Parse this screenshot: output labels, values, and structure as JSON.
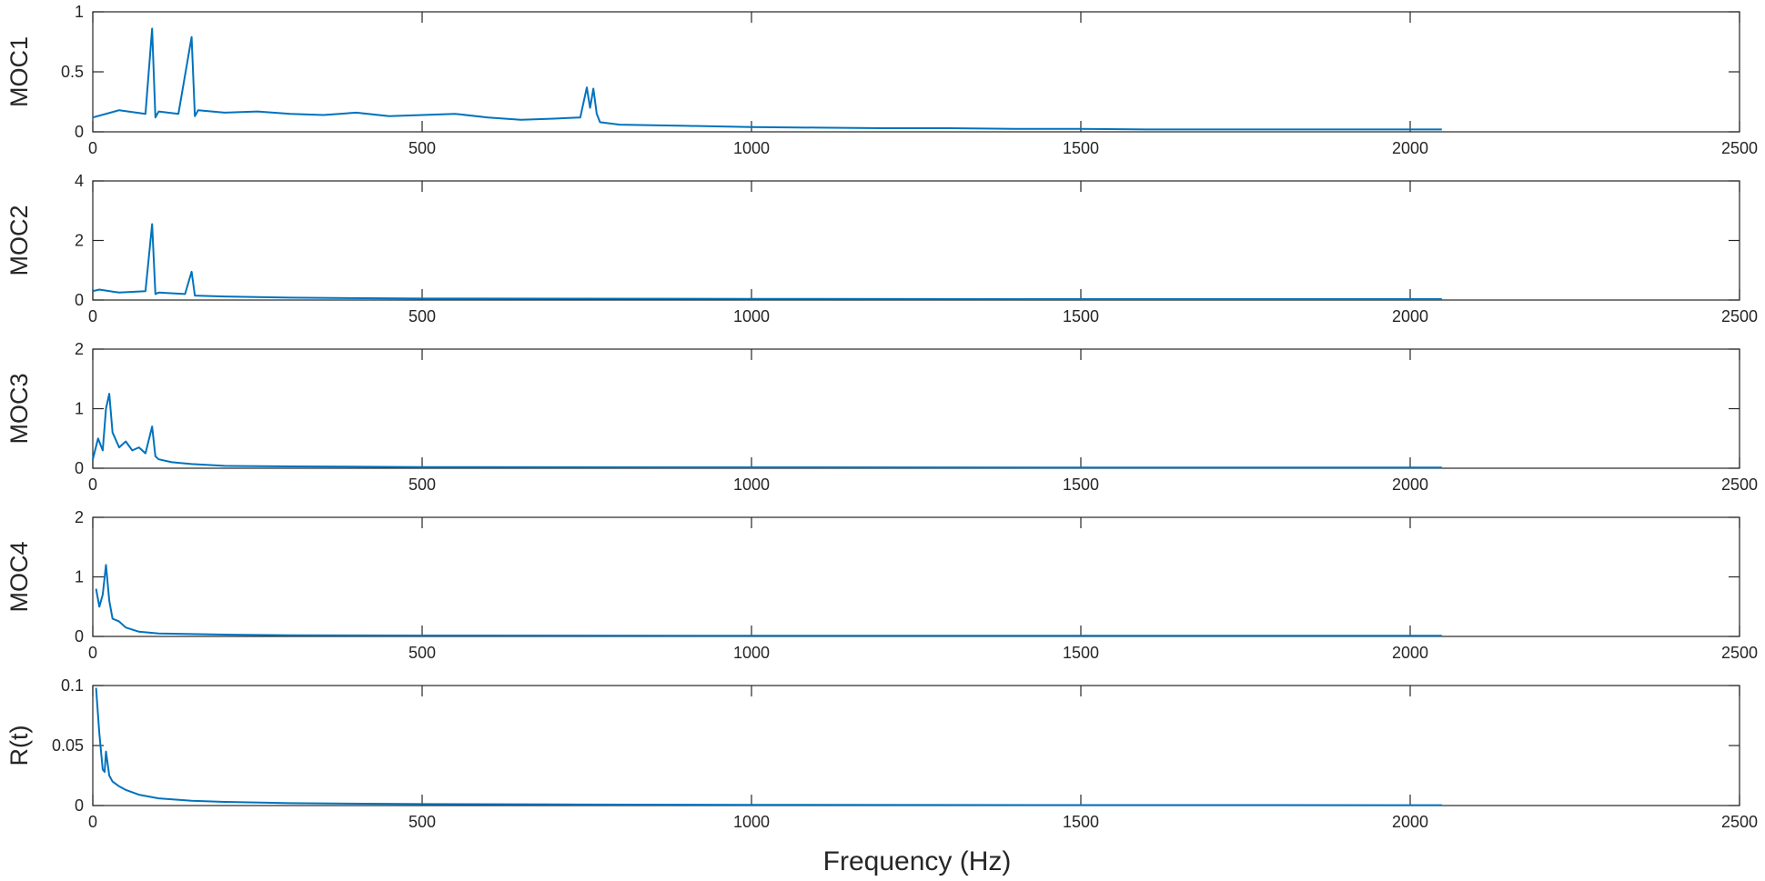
{
  "figure": {
    "xlabel": "Frequency (Hz)",
    "line_color": "#0072BD"
  },
  "chart_data": [
    {
      "type": "line",
      "ylabel": "MOC1",
      "xlim": [
        0,
        2500
      ],
      "ylim": [
        0,
        1
      ],
      "xticks": [
        0,
        500,
        1000,
        1500,
        2000,
        2500
      ],
      "yticks": [
        0,
        0.5,
        1
      ],
      "ytick_labels": [
        "0",
        "0.5",
        "1"
      ],
      "series": [
        {
          "x": [
            0,
            40,
            80,
            90,
            95,
            100,
            130,
            150,
            155,
            160,
            200,
            250,
            300,
            350,
            400,
            450,
            500,
            550,
            600,
            650,
            700,
            740,
            750,
            755,
            760,
            765,
            770,
            800,
            900,
            1000,
            1100,
            1200,
            1300,
            1400,
            1500,
            1600,
            1700,
            1800,
            1900,
            2000,
            2048
          ],
          "y": [
            0.12,
            0.18,
            0.15,
            0.86,
            0.12,
            0.17,
            0.15,
            0.79,
            0.13,
            0.18,
            0.16,
            0.17,
            0.15,
            0.14,
            0.16,
            0.13,
            0.14,
            0.15,
            0.12,
            0.1,
            0.11,
            0.12,
            0.37,
            0.2,
            0.36,
            0.15,
            0.08,
            0.06,
            0.05,
            0.04,
            0.035,
            0.03,
            0.03,
            0.025,
            0.025,
            0.02,
            0.02,
            0.02,
            0.02,
            0.02,
            0.02
          ]
        }
      ]
    },
    {
      "type": "line",
      "ylabel": "MOC2",
      "xlim": [
        0,
        2500
      ],
      "ylim": [
        0,
        4
      ],
      "xticks": [
        0,
        500,
        1000,
        1500,
        2000,
        2500
      ],
      "yticks": [
        0,
        2,
        4
      ],
      "ytick_labels": [
        "0",
        "2",
        "4"
      ],
      "series": [
        {
          "x": [
            0,
            10,
            40,
            80,
            90,
            95,
            100,
            140,
            150,
            155,
            200,
            300,
            500,
            1000,
            1500,
            2000,
            2048
          ],
          "y": [
            0.3,
            0.35,
            0.25,
            0.3,
            2.55,
            0.2,
            0.25,
            0.2,
            0.95,
            0.15,
            0.12,
            0.08,
            0.05,
            0.04,
            0.03,
            0.03,
            0.03
          ]
        }
      ]
    },
    {
      "type": "line",
      "ylabel": "MOC3",
      "xlim": [
        0,
        2500
      ],
      "ylim": [
        0,
        2
      ],
      "xticks": [
        0,
        500,
        1000,
        1500,
        2000,
        2500
      ],
      "yticks": [
        0,
        1,
        2
      ],
      "ytick_labels": [
        "0",
        "1",
        "2"
      ],
      "series": [
        {
          "x": [
            0,
            8,
            15,
            20,
            25,
            30,
            40,
            50,
            60,
            70,
            80,
            90,
            95,
            100,
            120,
            150,
            200,
            300,
            500,
            1000,
            1500,
            2000,
            2048
          ],
          "y": [
            0.15,
            0.5,
            0.3,
            1.0,
            1.25,
            0.6,
            0.35,
            0.45,
            0.3,
            0.35,
            0.25,
            0.7,
            0.2,
            0.15,
            0.1,
            0.07,
            0.04,
            0.03,
            0.02,
            0.015,
            0.01,
            0.01,
            0.01
          ]
        }
      ]
    },
    {
      "type": "line",
      "ylabel": "MOC4",
      "xlim": [
        0,
        2500
      ],
      "ylim": [
        0,
        2
      ],
      "xticks": [
        0,
        500,
        1000,
        1500,
        2000,
        2500
      ],
      "yticks": [
        0,
        1,
        2
      ],
      "ytick_labels": [
        "0",
        "1",
        "2"
      ],
      "series": [
        {
          "x": [
            5,
            10,
            15,
            20,
            25,
            30,
            40,
            50,
            70,
            100,
            150,
            200,
            300,
            500,
            1000,
            1500,
            2000,
            2048
          ],
          "y": [
            0.8,
            0.5,
            0.7,
            1.2,
            0.6,
            0.3,
            0.25,
            0.15,
            0.08,
            0.05,
            0.04,
            0.03,
            0.02,
            0.015,
            0.01,
            0.01,
            0.01,
            0.01
          ]
        }
      ]
    },
    {
      "type": "line",
      "ylabel": "R(t)",
      "xlim": [
        0,
        2500
      ],
      "ylim": [
        0,
        0.1
      ],
      "xticks": [
        0,
        500,
        1000,
        1500,
        2000,
        2500
      ],
      "yticks": [
        0,
        0.05,
        0.1
      ],
      "ytick_labels": [
        "0",
        "0.05",
        "0.1"
      ],
      "series": [
        {
          "x": [
            5,
            10,
            15,
            18,
            20,
            25,
            30,
            40,
            50,
            70,
            100,
            150,
            200,
            300,
            500,
            700,
            1000,
            1500,
            2000,
            2048
          ],
          "y": [
            0.098,
            0.06,
            0.03,
            0.028,
            0.045,
            0.025,
            0.02,
            0.016,
            0.013,
            0.009,
            0.006,
            0.004,
            0.003,
            0.002,
            0.0012,
            0.0009,
            0.0006,
            0.0004,
            0.0003,
            0.0003
          ]
        }
      ]
    }
  ]
}
